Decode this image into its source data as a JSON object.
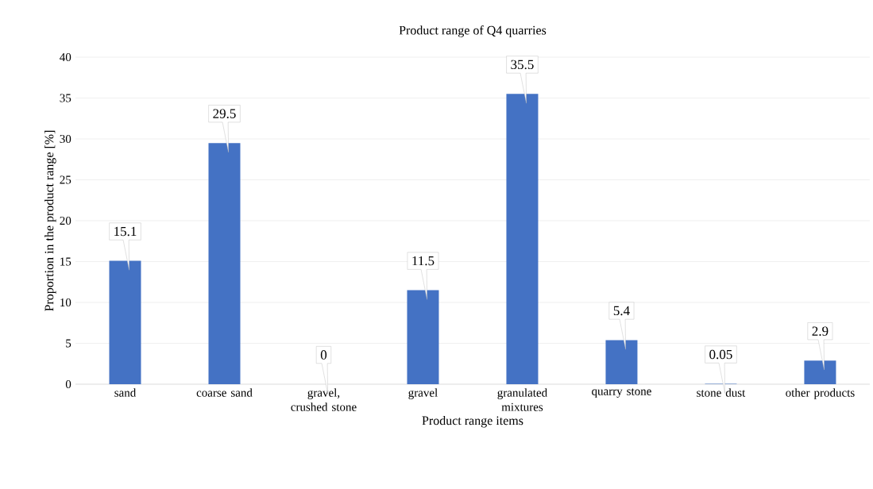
{
  "chart_data": {
    "type": "bar",
    "title": "Product range of Q4 quarries",
    "xlabel": "Product range items",
    "ylabel": "Proportion in the product range [%]",
    "categories": [
      "sand",
      "coarse sand",
      "gravel, crushed stone",
      "gravel",
      "granulated mixtures",
      "quarry stone",
      "stone dust",
      "other products"
    ],
    "values": [
      15.1,
      29.5,
      0,
      11.5,
      35.5,
      5.4,
      0.05,
      2.9
    ],
    "color": "#4472c4",
    "ylim": [
      0,
      40
    ],
    "yticks": [
      0,
      5,
      10,
      15,
      20,
      25,
      30,
      35,
      40
    ],
    "grid": "y",
    "data_labels": true
  }
}
